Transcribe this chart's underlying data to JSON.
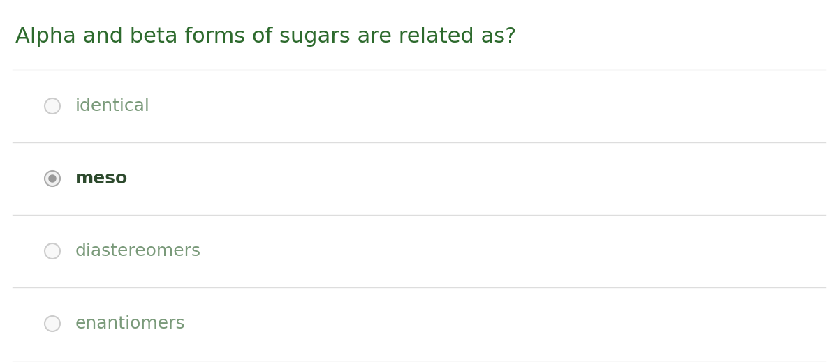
{
  "title": "Alpha and beta forms of sugars are related as?",
  "title_color": "#2d6a2d",
  "title_fontsize": 22,
  "background_color": "#ffffff",
  "options": [
    "identical",
    "meso",
    "diastereomers",
    "enantiomers"
  ],
  "selected_index": 1,
  "option_text_color_normal": "#7a9a7a",
  "option_text_color_selected": "#2d4a2d",
  "option_fontsize": 18,
  "radio_edge_normal": "#cccccc",
  "radio_fill_normal": "#ffffff",
  "radio_edge_selected": "#aaaaaa",
  "radio_fill_selected_inner": "#999999",
  "divider_color": "#dddddd",
  "divider_linewidth": 1.0,
  "fig_width": 12.0,
  "fig_height": 5.19,
  "dpi": 100
}
